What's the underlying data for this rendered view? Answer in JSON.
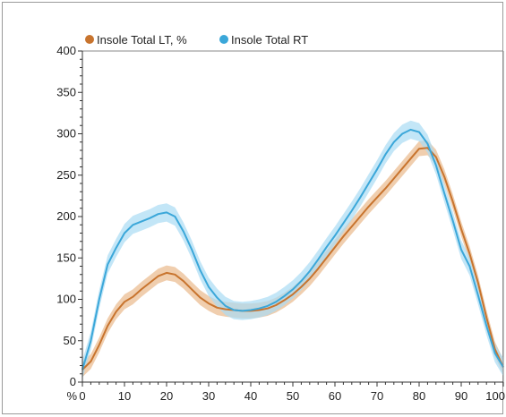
{
  "chart_data": {
    "type": "line",
    "title": "",
    "xlabel": "",
    "ylabel": "",
    "x_unit_label": "%",
    "xlim": [
      0,
      100
    ],
    "ylim": [
      0,
      400
    ],
    "x_ticks": [
      0,
      10,
      20,
      30,
      40,
      50,
      60,
      70,
      80,
      90,
      100
    ],
    "y_ticks": [
      0,
      50,
      100,
      150,
      200,
      250,
      300,
      350,
      400
    ],
    "legend_position": "top-left",
    "grid": false,
    "series": [
      {
        "name": "Insole Total LT, %",
        "color": "#c8742e",
        "band_color": "#e9b98b",
        "x": [
          0,
          2,
          4,
          6,
          8,
          10,
          12,
          14,
          16,
          18,
          20,
          22,
          24,
          26,
          28,
          30,
          32,
          34,
          36,
          38,
          40,
          42,
          44,
          46,
          48,
          50,
          52,
          54,
          56,
          58,
          60,
          62,
          64,
          66,
          68,
          70,
          72,
          74,
          76,
          78,
          80,
          82,
          84,
          86,
          88,
          90,
          92,
          94,
          96,
          98,
          100
        ],
        "values": [
          15,
          25,
          45,
          68,
          85,
          97,
          103,
          112,
          120,
          128,
          132,
          130,
          122,
          112,
          102,
          95,
          90,
          88,
          87,
          86,
          86,
          87,
          89,
          93,
          99,
          106,
          115,
          125,
          137,
          150,
          163,
          176,
          188,
          200,
          212,
          223,
          234,
          246,
          258,
          270,
          282,
          283,
          272,
          248,
          218,
          185,
          155,
          120,
          78,
          40,
          18
        ],
        "band": 9
      },
      {
        "name": "Insole Total RT",
        "color": "#3ba7d9",
        "band_color": "#a9dcf3",
        "x": [
          0,
          2,
          4,
          6,
          8,
          10,
          12,
          14,
          16,
          18,
          20,
          22,
          24,
          26,
          28,
          30,
          32,
          34,
          36,
          38,
          40,
          42,
          44,
          46,
          48,
          50,
          52,
          54,
          56,
          58,
          60,
          62,
          64,
          66,
          68,
          70,
          72,
          74,
          76,
          78,
          80,
          82,
          84,
          86,
          88,
          90,
          92,
          94,
          96,
          98,
          100
        ],
        "values": [
          15,
          50,
          100,
          142,
          162,
          180,
          190,
          194,
          198,
          203,
          205,
          200,
          182,
          160,
          135,
          115,
          102,
          92,
          87,
          86,
          87,
          89,
          92,
          97,
          104,
          112,
          122,
          134,
          148,
          163,
          177,
          192,
          207,
          223,
          240,
          257,
          275,
          290,
          300,
          305,
          302,
          288,
          262,
          228,
          195,
          160,
          140,
          105,
          68,
          35,
          18
        ],
        "band": 11
      }
    ]
  }
}
